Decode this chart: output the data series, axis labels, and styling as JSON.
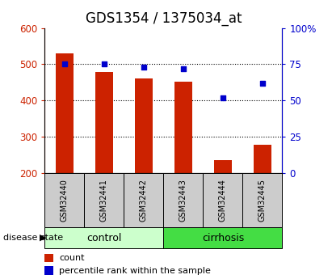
{
  "title": "GDS1354 / 1375034_at",
  "samples": [
    "GSM32440",
    "GSM32441",
    "GSM32442",
    "GSM32443",
    "GSM32444",
    "GSM32445"
  ],
  "counts": [
    530,
    478,
    460,
    452,
    235,
    278
  ],
  "percentile_ranks": [
    75,
    75,
    73,
    72,
    52,
    62
  ],
  "groups": [
    {
      "label": "control",
      "start": 0,
      "end": 3,
      "color": "#ccffcc"
    },
    {
      "label": "cirrhosis",
      "start": 3,
      "end": 6,
      "color": "#44dd44"
    }
  ],
  "ylim_left": [
    200,
    600
  ],
  "ylim_right": [
    0,
    100
  ],
  "yticks_left": [
    200,
    300,
    400,
    500,
    600
  ],
  "yticks_right": [
    0,
    25,
    50,
    75,
    100
  ],
  "yticklabels_right": [
    "0",
    "25",
    "50",
    "75",
    "100%"
  ],
  "bar_color": "#cc2200",
  "scatter_color": "#0000cc",
  "bar_width": 0.45,
  "background_color": "#ffffff",
  "plot_bg_color": "#ffffff",
  "grid_color": "black",
  "label_count": "count",
  "label_percentile": "percentile rank within the sample",
  "disease_state_label": "disease state",
  "title_fontsize": 12,
  "tick_fontsize": 8.5,
  "sample_fontsize": 7,
  "group_fontsize": 9,
  "legend_fontsize": 8
}
